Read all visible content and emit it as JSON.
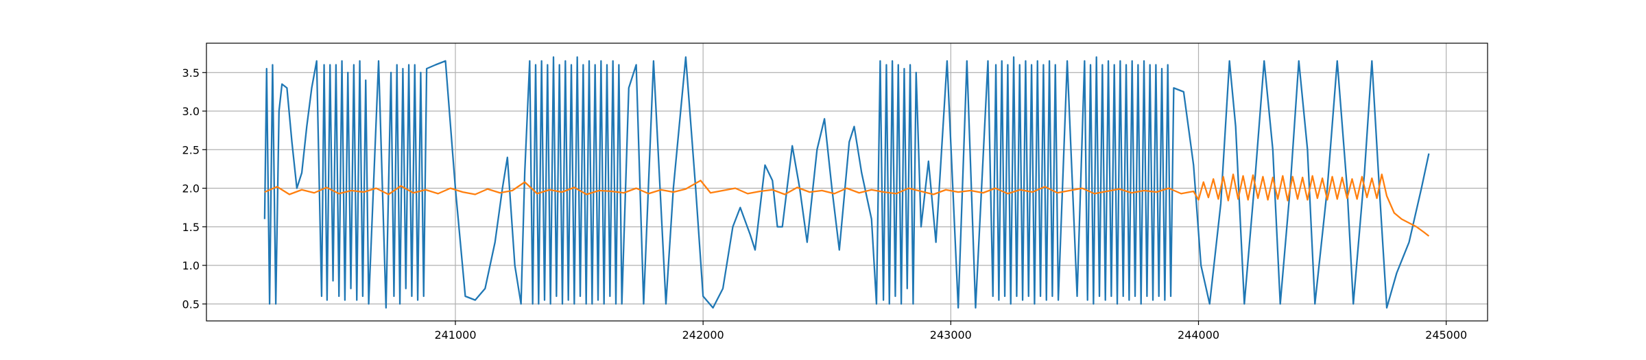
{
  "chart_data": {
    "type": "line",
    "xlim": [
      239995,
      245167
    ],
    "ylim": [
      0.28,
      3.88
    ],
    "xticks": [
      241000,
      242000,
      243000,
      244000,
      245000
    ],
    "yticks": [
      0.5,
      {
        "value": 1,
        "label": "1.0"
      },
      1.5,
      {
        "value": 2,
        "label": "2.0"
      },
      2.5,
      {
        "value": 3,
        "label": "3.0"
      },
      3.5
    ],
    "grid": true,
    "series": [
      {
        "color": "#1f77b4",
        "x": [
          240230,
          240238,
          240250,
          240262,
          240275,
          240288,
          240300,
          240320,
          240340,
          240360,
          240380,
          240400,
          240420,
          240440,
          240460,
          240470,
          240482,
          240494,
          240506,
          240518,
          240530,
          240542,
          240554,
          240566,
          240578,
          240590,
          240602,
          240614,
          240626,
          240638,
          240650,
          240690,
          240720,
          240740,
          240752,
          240764,
          240776,
          240788,
          240800,
          240812,
          240824,
          240836,
          240848,
          240860,
          240872,
          240884,
          240920,
          240960,
          241000,
          241040,
          241080,
          241120,
          241160,
          241190,
          241210,
          241240,
          241265,
          241280,
          241300,
          241312,
          241324,
          241336,
          241348,
          241360,
          241372,
          241384,
          241396,
          241408,
          241420,
          241432,
          241444,
          241456,
          241468,
          241480,
          241492,
          241504,
          241516,
          241528,
          241540,
          241552,
          241564,
          241576,
          241588,
          241600,
          241612,
          241624,
          241636,
          241648,
          241660,
          241672,
          241700,
          241730,
          241760,
          241800,
          241850,
          241880,
          241930,
          241970,
          242000,
          242040,
          242080,
          242120,
          242150,
          242190,
          242210,
          242250,
          242280,
          242300,
          242320,
          242360,
          242390,
          242420,
          242460,
          242490,
          242520,
          242550,
          242590,
          242610,
          242640,
          242680,
          242700,
          242715,
          242728,
          242740,
          242752,
          242764,
          242776,
          242788,
          242800,
          242812,
          242824,
          242836,
          242848,
          242860,
          242880,
          242910,
          242940,
          242985,
          243030,
          243065,
          243100,
          243150,
          243170,
          243182,
          243194,
          243206,
          243218,
          243230,
          243242,
          243254,
          243266,
          243278,
          243290,
          243302,
          243314,
          243326,
          243338,
          243350,
          243362,
          243374,
          243386,
          243398,
          243410,
          243422,
          243434,
          243470,
          243510,
          243540,
          243552,
          243564,
          243576,
          243588,
          243600,
          243612,
          243624,
          243636,
          243648,
          243660,
          243672,
          243684,
          243696,
          243708,
          243720,
          243732,
          243744,
          243756,
          243768,
          243780,
          243792,
          243804,
          243816,
          243828,
          243840,
          243852,
          243864,
          243876,
          243888,
          243900,
          243940,
          243980,
          244010,
          244045,
          244090,
          244125,
          244150,
          244185,
          244230,
          244265,
          244300,
          244330,
          244370,
          244405,
          244440,
          244470,
          244520,
          244560,
          244600,
          244625,
          244670,
          244700,
          244730,
          244760,
          244800,
          244850,
          244900,
          244930
        ],
        "values": [
          1.6,
          3.55,
          0.5,
          3.6,
          0.5,
          3.0,
          3.35,
          3.3,
          2.6,
          2.0,
          2.2,
          2.8,
          3.3,
          3.65,
          0.6,
          3.6,
          0.55,
          3.6,
          0.8,
          3.6,
          0.6,
          3.65,
          0.55,
          3.5,
          0.7,
          3.6,
          0.55,
          3.65,
          0.6,
          3.4,
          0.5,
          3.65,
          0.45,
          3.5,
          0.6,
          3.6,
          0.5,
          3.55,
          0.7,
          3.6,
          0.6,
          3.6,
          0.55,
          3.5,
          0.6,
          3.55,
          3.6,
          3.65,
          2.0,
          0.6,
          0.55,
          0.7,
          1.3,
          2.0,
          2.4,
          1.0,
          0.5,
          2.2,
          3.65,
          0.5,
          3.6,
          0.5,
          3.65,
          0.55,
          3.6,
          0.5,
          3.7,
          0.6,
          3.6,
          0.5,
          3.65,
          0.55,
          3.6,
          0.5,
          3.7,
          0.6,
          3.6,
          0.5,
          3.65,
          0.5,
          3.6,
          0.55,
          3.65,
          0.5,
          3.6,
          0.6,
          3.65,
          0.5,
          3.6,
          0.5,
          3.3,
          3.6,
          0.5,
          3.65,
          0.5,
          2.0,
          3.7,
          2.0,
          0.6,
          0.45,
          0.7,
          1.5,
          1.75,
          1.4,
          1.2,
          2.3,
          2.1,
          1.5,
          1.5,
          2.55,
          2.0,
          1.3,
          2.5,
          2.9,
          2.0,
          1.2,
          2.6,
          2.8,
          2.2,
          1.6,
          0.5,
          3.65,
          0.55,
          3.6,
          0.5,
          3.65,
          0.6,
          3.6,
          0.5,
          3.55,
          0.7,
          3.6,
          0.5,
          3.5,
          1.5,
          2.35,
          1.3,
          3.65,
          0.45,
          3.65,
          0.45,
          3.65,
          0.6,
          3.6,
          0.55,
          3.65,
          0.6,
          3.6,
          0.5,
          3.7,
          0.6,
          3.6,
          0.55,
          3.65,
          0.6,
          3.6,
          0.5,
          3.65,
          0.6,
          3.6,
          0.55,
          3.65,
          0.6,
          3.6,
          0.55,
          3.65,
          0.6,
          3.65,
          0.55,
          3.6,
          0.5,
          3.7,
          0.6,
          3.6,
          0.55,
          3.65,
          0.6,
          3.6,
          0.5,
          3.65,
          0.6,
          3.6,
          0.55,
          3.65,
          0.6,
          3.6,
          0.5,
          3.65,
          0.6,
          3.6,
          0.55,
          3.6,
          0.6,
          3.55,
          0.55,
          3.6,
          0.6,
          3.3,
          3.25,
          2.3,
          1.0,
          0.5,
          1.8,
          3.65,
          2.8,
          0.5,
          2.2,
          3.65,
          2.5,
          0.5,
          2.0,
          3.65,
          2.5,
          0.5,
          2.0,
          3.65,
          2.0,
          0.5,
          2.2,
          3.65,
          2.0,
          0.45,
          0.9,
          1.3,
          2.0,
          2.45
        ]
      },
      {
        "color": "#ff7f0e",
        "x": [
          240230,
          240280,
          240330,
          240380,
          240430,
          240480,
          240530,
          240580,
          240630,
          240680,
          240730,
          240780,
          240830,
          240880,
          240930,
          240980,
          241030,
          241080,
          241130,
          241180,
          241230,
          241280,
          241330,
          241380,
          241430,
          241480,
          241530,
          241580,
          241630,
          241680,
          241730,
          241780,
          241830,
          241880,
          241930,
          241990,
          242030,
          242080,
          242130,
          242180,
          242230,
          242280,
          242330,
          242380,
          242430,
          242480,
          242530,
          242580,
          242630,
          242680,
          242730,
          242780,
          242830,
          242880,
          242930,
          242980,
          243030,
          243080,
          243130,
          243180,
          243230,
          243280,
          243330,
          243380,
          243430,
          243480,
          243530,
          243580,
          243630,
          243680,
          243730,
          243780,
          243830,
          243880,
          243930,
          243980,
          244000,
          244020,
          244040,
          244060,
          244080,
          244100,
          244120,
          244140,
          244160,
          244180,
          244200,
          244220,
          244240,
          244260,
          244280,
          244300,
          244320,
          244340,
          244360,
          244380,
          244400,
          244420,
          244440,
          244460,
          244480,
          244500,
          244520,
          244540,
          244560,
          244580,
          244600,
          244620,
          244640,
          244660,
          244680,
          244700,
          244720,
          244740,
          244760,
          244790,
          244820,
          244850,
          244880,
          244910,
          244930
        ],
        "values": [
          1.95,
          2.02,
          1.92,
          1.98,
          1.94,
          2.01,
          1.93,
          1.97,
          1.95,
          2.0,
          1.92,
          2.03,
          1.94,
          1.98,
          1.93,
          2.0,
          1.95,
          1.92,
          1.99,
          1.94,
          1.97,
          2.08,
          1.93,
          1.98,
          1.95,
          2.01,
          1.92,
          1.97,
          1.96,
          1.94,
          2.0,
          1.93,
          1.98,
          1.95,
          1.99,
          2.1,
          1.94,
          1.97,
          2.0,
          1.93,
          1.96,
          1.98,
          1.92,
          2.01,
          1.95,
          1.97,
          1.93,
          2.0,
          1.94,
          1.98,
          1.95,
          1.93,
          2.0,
          1.96,
          1.92,
          1.98,
          1.95,
          1.97,
          1.94,
          2.0,
          1.93,
          1.98,
          1.95,
          2.02,
          1.94,
          1.97,
          2.0,
          1.93,
          1.96,
          1.99,
          1.94,
          1.97,
          1.95,
          2.0,
          1.93,
          1.96,
          1.85,
          2.08,
          1.88,
          2.12,
          1.86,
          2.15,
          1.84,
          2.18,
          1.86,
          2.16,
          1.85,
          2.17,
          1.87,
          2.15,
          1.85,
          2.14,
          1.86,
          2.16,
          1.84,
          2.15,
          1.86,
          2.14,
          1.85,
          2.16,
          1.87,
          2.13,
          1.85,
          2.15,
          1.86,
          2.14,
          1.87,
          2.12,
          1.86,
          2.15,
          1.88,
          2.13,
          1.87,
          2.18,
          1.9,
          1.68,
          1.6,
          1.55,
          1.5,
          1.43,
          1.38
        ]
      }
    ]
  }
}
